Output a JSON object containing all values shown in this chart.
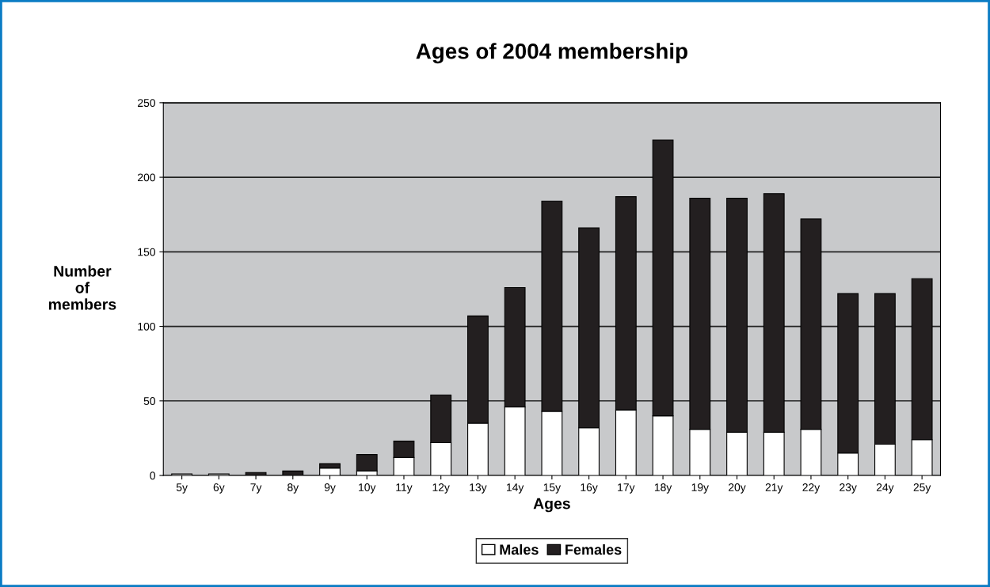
{
  "chart_data": {
    "type": "bar",
    "title": "Ages of 2004 membership",
    "xlabel": "Ages",
    "ylabel": "Number\nof\nmembers",
    "categories": [
      "5y",
      "6y",
      "7y",
      "8y",
      "9y",
      "10y",
      "11y",
      "12y",
      "13y",
      "14y",
      "15y",
      "16y",
      "17y",
      "18y",
      "19y",
      "20y",
      "21y",
      "22y",
      "23y",
      "24y",
      "25y"
    ],
    "series": [
      {
        "name": "Males",
        "color": "#ffffff",
        "values": [
          1,
          1,
          0,
          0,
          5,
          3,
          12,
          22,
          35,
          46,
          43,
          32,
          44,
          40,
          31,
          29,
          29,
          31,
          15,
          21,
          24
        ]
      },
      {
        "name": "Females",
        "color": "#231f20",
        "values": [
          0,
          0,
          2,
          3,
          3,
          11,
          11,
          32,
          72,
          80,
          141,
          134,
          143,
          185,
          155,
          157,
          160,
          141,
          107,
          101,
          108
        ]
      }
    ],
    "stacked": true,
    "ylim": [
      0,
      250
    ],
    "yticks": [
      0,
      50,
      100,
      150,
      200,
      250
    ],
    "grid": "y",
    "legend": "bottom"
  }
}
